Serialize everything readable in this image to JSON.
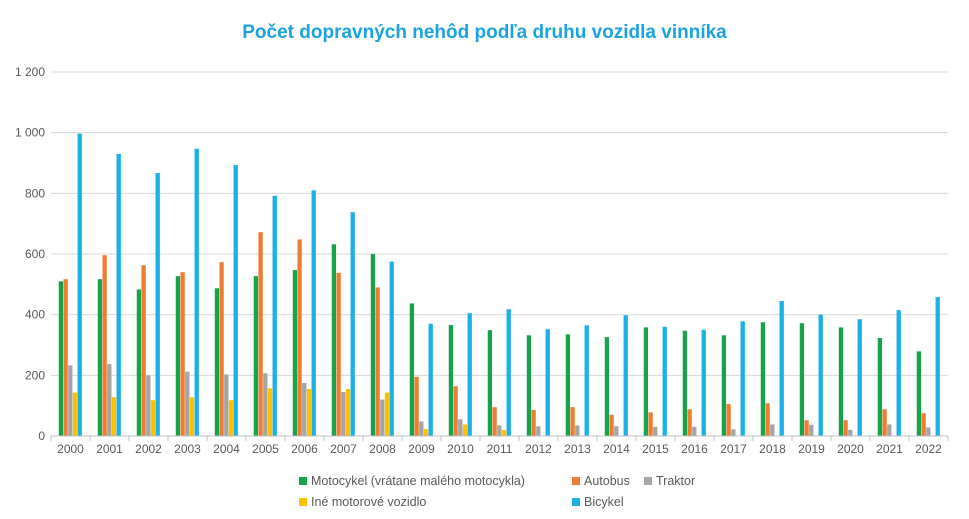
{
  "chart_data": {
    "type": "bar",
    "title": "Počet dopravných nehôd podľa druhu vozidla vinníka",
    "xlabel": "",
    "ylabel": "",
    "ylim": [
      0,
      1200
    ],
    "yticks": [
      0,
      200,
      400,
      600,
      800,
      1000,
      1200
    ],
    "ytick_labels": [
      "0",
      "200",
      "400",
      "600",
      "800",
      "1 000",
      "1 200"
    ],
    "grid": true,
    "legend_position": "bottom",
    "categories": [
      "2000",
      "2001",
      "2002",
      "2003",
      "2004",
      "2005",
      "2006",
      "2007",
      "2008",
      "2009",
      "2010",
      "2011",
      "2012",
      "2013",
      "2014",
      "2015",
      "2016",
      "2017",
      "2018",
      "2019",
      "2020",
      "2021",
      "2022"
    ],
    "series": [
      {
        "name": "Motocykel (vrátane malého motocykla)",
        "color": "#17a34a",
        "values": [
          510,
          517,
          483,
          527,
          487,
          527,
          547,
          632,
          600,
          437,
          366,
          349,
          332,
          335,
          326,
          358,
          347,
          332,
          375,
          372,
          358,
          323,
          279
        ]
      },
      {
        "name": "Autobus",
        "color": "#ed7d31",
        "values": [
          517,
          596,
          563,
          540,
          573,
          672,
          648,
          538,
          490,
          195,
          164,
          95,
          86,
          95,
          70,
          78,
          88,
          105,
          108,
          52,
          52,
          88,
          75
        ]
      },
      {
        "name": "Traktor",
        "color": "#a5a5a5",
        "values": [
          233,
          237,
          200,
          212,
          203,
          207,
          175,
          145,
          120,
          48,
          55,
          35,
          32,
          35,
          32,
          30,
          30,
          22,
          38,
          37,
          20,
          38,
          28
        ]
      },
      {
        "name": "Iné motorové vozidlo",
        "color": "#ffc000",
        "values": [
          143,
          128,
          118,
          128,
          118,
          157,
          155,
          155,
          143,
          23,
          38,
          20,
          0,
          0,
          0,
          0,
          0,
          0,
          0,
          0,
          0,
          0,
          0
        ]
      },
      {
        "name": "Bicykel",
        "color": "#1ab0e8",
        "values": [
          997,
          930,
          867,
          947,
          893,
          792,
          810,
          738,
          575,
          370,
          405,
          418,
          352,
          365,
          398,
          360,
          350,
          378,
          445,
          400,
          385,
          415,
          458
        ]
      }
    ]
  }
}
